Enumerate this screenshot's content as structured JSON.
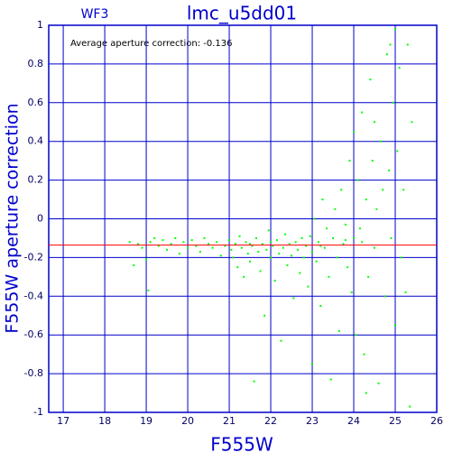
{
  "chart_data": {
    "type": "scatter",
    "title": "lmc_u5dd01",
    "label": "WF3",
    "annotation": "Average aperture correction: -0.136",
    "xlabel": "F555W",
    "ylabel": "F555W aperture correction",
    "hline": -0.136,
    "hline_color": "#ff0000",
    "color": "#00ff00",
    "grid": true,
    "xlim": [
      16.65,
      26
    ],
    "ylim": [
      -1,
      1
    ],
    "xticks": [
      17,
      18,
      19,
      20,
      21,
      22,
      23,
      24,
      25,
      26
    ],
    "yticks": [
      -1,
      -0.8,
      -0.6,
      -0.4,
      -0.2,
      0,
      0.2,
      0.4,
      0.6,
      0.8,
      1
    ],
    "x": [
      18.6,
      18.7,
      18.8,
      18.9,
      19.0,
      19.05,
      19.1,
      19.2,
      19.3,
      19.4,
      19.5,
      19.6,
      19.7,
      19.8,
      19.9,
      20.0,
      20.1,
      20.2,
      20.3,
      20.4,
      20.5,
      20.6,
      20.7,
      20.8,
      20.9,
      21.0,
      21.05,
      21.1,
      21.15,
      21.2,
      21.25,
      21.3,
      21.35,
      21.4,
      21.45,
      21.5,
      21.55,
      21.6,
      21.65,
      21.7,
      21.75,
      21.8,
      21.85,
      21.9,
      21.95,
      22.0,
      22.05,
      22.1,
      22.15,
      22.2,
      22.25,
      22.3,
      22.35,
      22.4,
      22.45,
      22.5,
      22.55,
      22.6,
      22.65,
      22.7,
      22.75,
      22.8,
      22.85,
      22.9,
      22.95,
      23.0,
      23.0,
      23.05,
      23.1,
      23.15,
      23.2,
      23.25,
      23.3,
      23.35,
      23.4,
      23.45,
      23.5,
      23.55,
      23.6,
      23.65,
      23.7,
      23.75,
      23.8,
      23.85,
      23.9,
      23.95,
      24.0,
      24.0,
      24.05,
      24.1,
      24.15,
      24.2,
      24.25,
      24.3,
      24.35,
      24.4,
      24.45,
      24.5,
      24.55,
      24.6,
      24.65,
      24.7,
      24.75,
      24.8,
      24.85,
      24.9,
      24.95,
      25.0,
      25.05,
      25.1,
      25.15,
      25.2,
      25.25,
      25.3,
      25.35,
      25.4,
      23.2,
      22.0,
      21.5,
      24.2,
      23.8,
      24.88,
      24.5,
      25.0,
      24.3
    ],
    "y": [
      -0.12,
      -0.24,
      -0.13,
      -0.15,
      -0.21,
      -0.37,
      -0.12,
      -0.1,
      -0.14,
      -0.11,
      -0.16,
      -0.13,
      -0.1,
      -0.18,
      -0.12,
      -0.15,
      -0.11,
      -0.14,
      -0.17,
      -0.1,
      -0.13,
      -0.15,
      -0.12,
      -0.19,
      -0.14,
      -0.11,
      -0.16,
      -0.2,
      -0.13,
      -0.25,
      -0.09,
      -0.15,
      -0.3,
      -0.12,
      -0.18,
      -0.22,
      -0.14,
      -0.84,
      -0.1,
      -0.17,
      -0.27,
      -0.13,
      -0.5,
      -0.16,
      -0.06,
      -0.2,
      -0.14,
      -0.32,
      -0.11,
      -0.18,
      -0.63,
      -0.15,
      -0.08,
      -0.24,
      -0.13,
      -0.19,
      -0.41,
      -0.12,
      -0.16,
      -0.28,
      -0.1,
      -0.2,
      -0.14,
      -0.35,
      -0.09,
      -0.17,
      -0.75,
      0.0,
      -0.22,
      -0.12,
      -0.45,
      0.1,
      -0.15,
      -0.05,
      -0.3,
      -0.83,
      -0.1,
      0.05,
      -0.2,
      -0.58,
      0.15,
      -0.13,
      -0.03,
      -0.25,
      0.3,
      -0.38,
      -0.1,
      0.45,
      -0.6,
      0.2,
      -0.05,
      0.55,
      -0.7,
      0.1,
      -0.3,
      0.72,
      0.3,
      -0.15,
      0.05,
      -0.85,
      0.4,
      0.15,
      -0.4,
      0.85,
      0.25,
      -0.1,
      0.6,
      -0.55,
      0.35,
      0.78,
      -0.2,
      0.15,
      -0.38,
      0.9,
      -0.97,
      0.5,
      -0.14,
      -0.12,
      -0.13,
      -0.12,
      -0.11,
      0.9,
      0.5,
      0.98,
      -0.9
    ]
  }
}
